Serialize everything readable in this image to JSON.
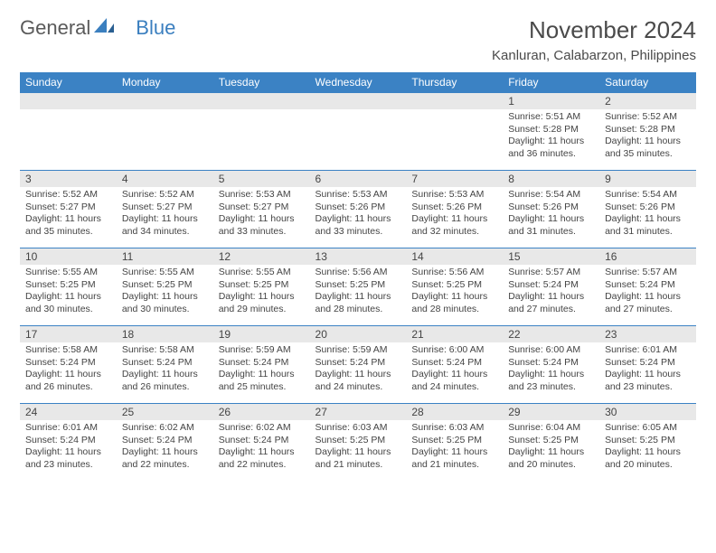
{
  "brand": {
    "part1": "General",
    "part2": "Blue"
  },
  "title": "November 2024",
  "location": "Kanluran, Calabarzon, Philippines",
  "colors": {
    "header_bg": "#3b82c4",
    "header_text": "#ffffff",
    "day_num_bg": "#e8e8e8",
    "border": "#3b82c4",
    "text": "#444444",
    "logo_gray": "#5a5a5a",
    "logo_blue": "#3b7fbf",
    "background": "#ffffff"
  },
  "weekdays": [
    "Sunday",
    "Monday",
    "Tuesday",
    "Wednesday",
    "Thursday",
    "Friday",
    "Saturday"
  ],
  "weeks": [
    [
      null,
      null,
      null,
      null,
      null,
      {
        "n": "1",
        "sr": "5:51 AM",
        "ss": "5:28 PM",
        "dl": "11 hours and 36 minutes."
      },
      {
        "n": "2",
        "sr": "5:52 AM",
        "ss": "5:28 PM",
        "dl": "11 hours and 35 minutes."
      }
    ],
    [
      {
        "n": "3",
        "sr": "5:52 AM",
        "ss": "5:27 PM",
        "dl": "11 hours and 35 minutes."
      },
      {
        "n": "4",
        "sr": "5:52 AM",
        "ss": "5:27 PM",
        "dl": "11 hours and 34 minutes."
      },
      {
        "n": "5",
        "sr": "5:53 AM",
        "ss": "5:27 PM",
        "dl": "11 hours and 33 minutes."
      },
      {
        "n": "6",
        "sr": "5:53 AM",
        "ss": "5:26 PM",
        "dl": "11 hours and 33 minutes."
      },
      {
        "n": "7",
        "sr": "5:53 AM",
        "ss": "5:26 PM",
        "dl": "11 hours and 32 minutes."
      },
      {
        "n": "8",
        "sr": "5:54 AM",
        "ss": "5:26 PM",
        "dl": "11 hours and 31 minutes."
      },
      {
        "n": "9",
        "sr": "5:54 AM",
        "ss": "5:26 PM",
        "dl": "11 hours and 31 minutes."
      }
    ],
    [
      {
        "n": "10",
        "sr": "5:55 AM",
        "ss": "5:25 PM",
        "dl": "11 hours and 30 minutes."
      },
      {
        "n": "11",
        "sr": "5:55 AM",
        "ss": "5:25 PM",
        "dl": "11 hours and 30 minutes."
      },
      {
        "n": "12",
        "sr": "5:55 AM",
        "ss": "5:25 PM",
        "dl": "11 hours and 29 minutes."
      },
      {
        "n": "13",
        "sr": "5:56 AM",
        "ss": "5:25 PM",
        "dl": "11 hours and 28 minutes."
      },
      {
        "n": "14",
        "sr": "5:56 AM",
        "ss": "5:25 PM",
        "dl": "11 hours and 28 minutes."
      },
      {
        "n": "15",
        "sr": "5:57 AM",
        "ss": "5:24 PM",
        "dl": "11 hours and 27 minutes."
      },
      {
        "n": "16",
        "sr": "5:57 AM",
        "ss": "5:24 PM",
        "dl": "11 hours and 27 minutes."
      }
    ],
    [
      {
        "n": "17",
        "sr": "5:58 AM",
        "ss": "5:24 PM",
        "dl": "11 hours and 26 minutes."
      },
      {
        "n": "18",
        "sr": "5:58 AM",
        "ss": "5:24 PM",
        "dl": "11 hours and 26 minutes."
      },
      {
        "n": "19",
        "sr": "5:59 AM",
        "ss": "5:24 PM",
        "dl": "11 hours and 25 minutes."
      },
      {
        "n": "20",
        "sr": "5:59 AM",
        "ss": "5:24 PM",
        "dl": "11 hours and 24 minutes."
      },
      {
        "n": "21",
        "sr": "6:00 AM",
        "ss": "5:24 PM",
        "dl": "11 hours and 24 minutes."
      },
      {
        "n": "22",
        "sr": "6:00 AM",
        "ss": "5:24 PM",
        "dl": "11 hours and 23 minutes."
      },
      {
        "n": "23",
        "sr": "6:01 AM",
        "ss": "5:24 PM",
        "dl": "11 hours and 23 minutes."
      }
    ],
    [
      {
        "n": "24",
        "sr": "6:01 AM",
        "ss": "5:24 PM",
        "dl": "11 hours and 23 minutes."
      },
      {
        "n": "25",
        "sr": "6:02 AM",
        "ss": "5:24 PM",
        "dl": "11 hours and 22 minutes."
      },
      {
        "n": "26",
        "sr": "6:02 AM",
        "ss": "5:24 PM",
        "dl": "11 hours and 22 minutes."
      },
      {
        "n": "27",
        "sr": "6:03 AM",
        "ss": "5:25 PM",
        "dl": "11 hours and 21 minutes."
      },
      {
        "n": "28",
        "sr": "6:03 AM",
        "ss": "5:25 PM",
        "dl": "11 hours and 21 minutes."
      },
      {
        "n": "29",
        "sr": "6:04 AM",
        "ss": "5:25 PM",
        "dl": "11 hours and 20 minutes."
      },
      {
        "n": "30",
        "sr": "6:05 AM",
        "ss": "5:25 PM",
        "dl": "11 hours and 20 minutes."
      }
    ]
  ],
  "labels": {
    "sunrise": "Sunrise: ",
    "sunset": "Sunset: ",
    "daylight": "Daylight: "
  }
}
